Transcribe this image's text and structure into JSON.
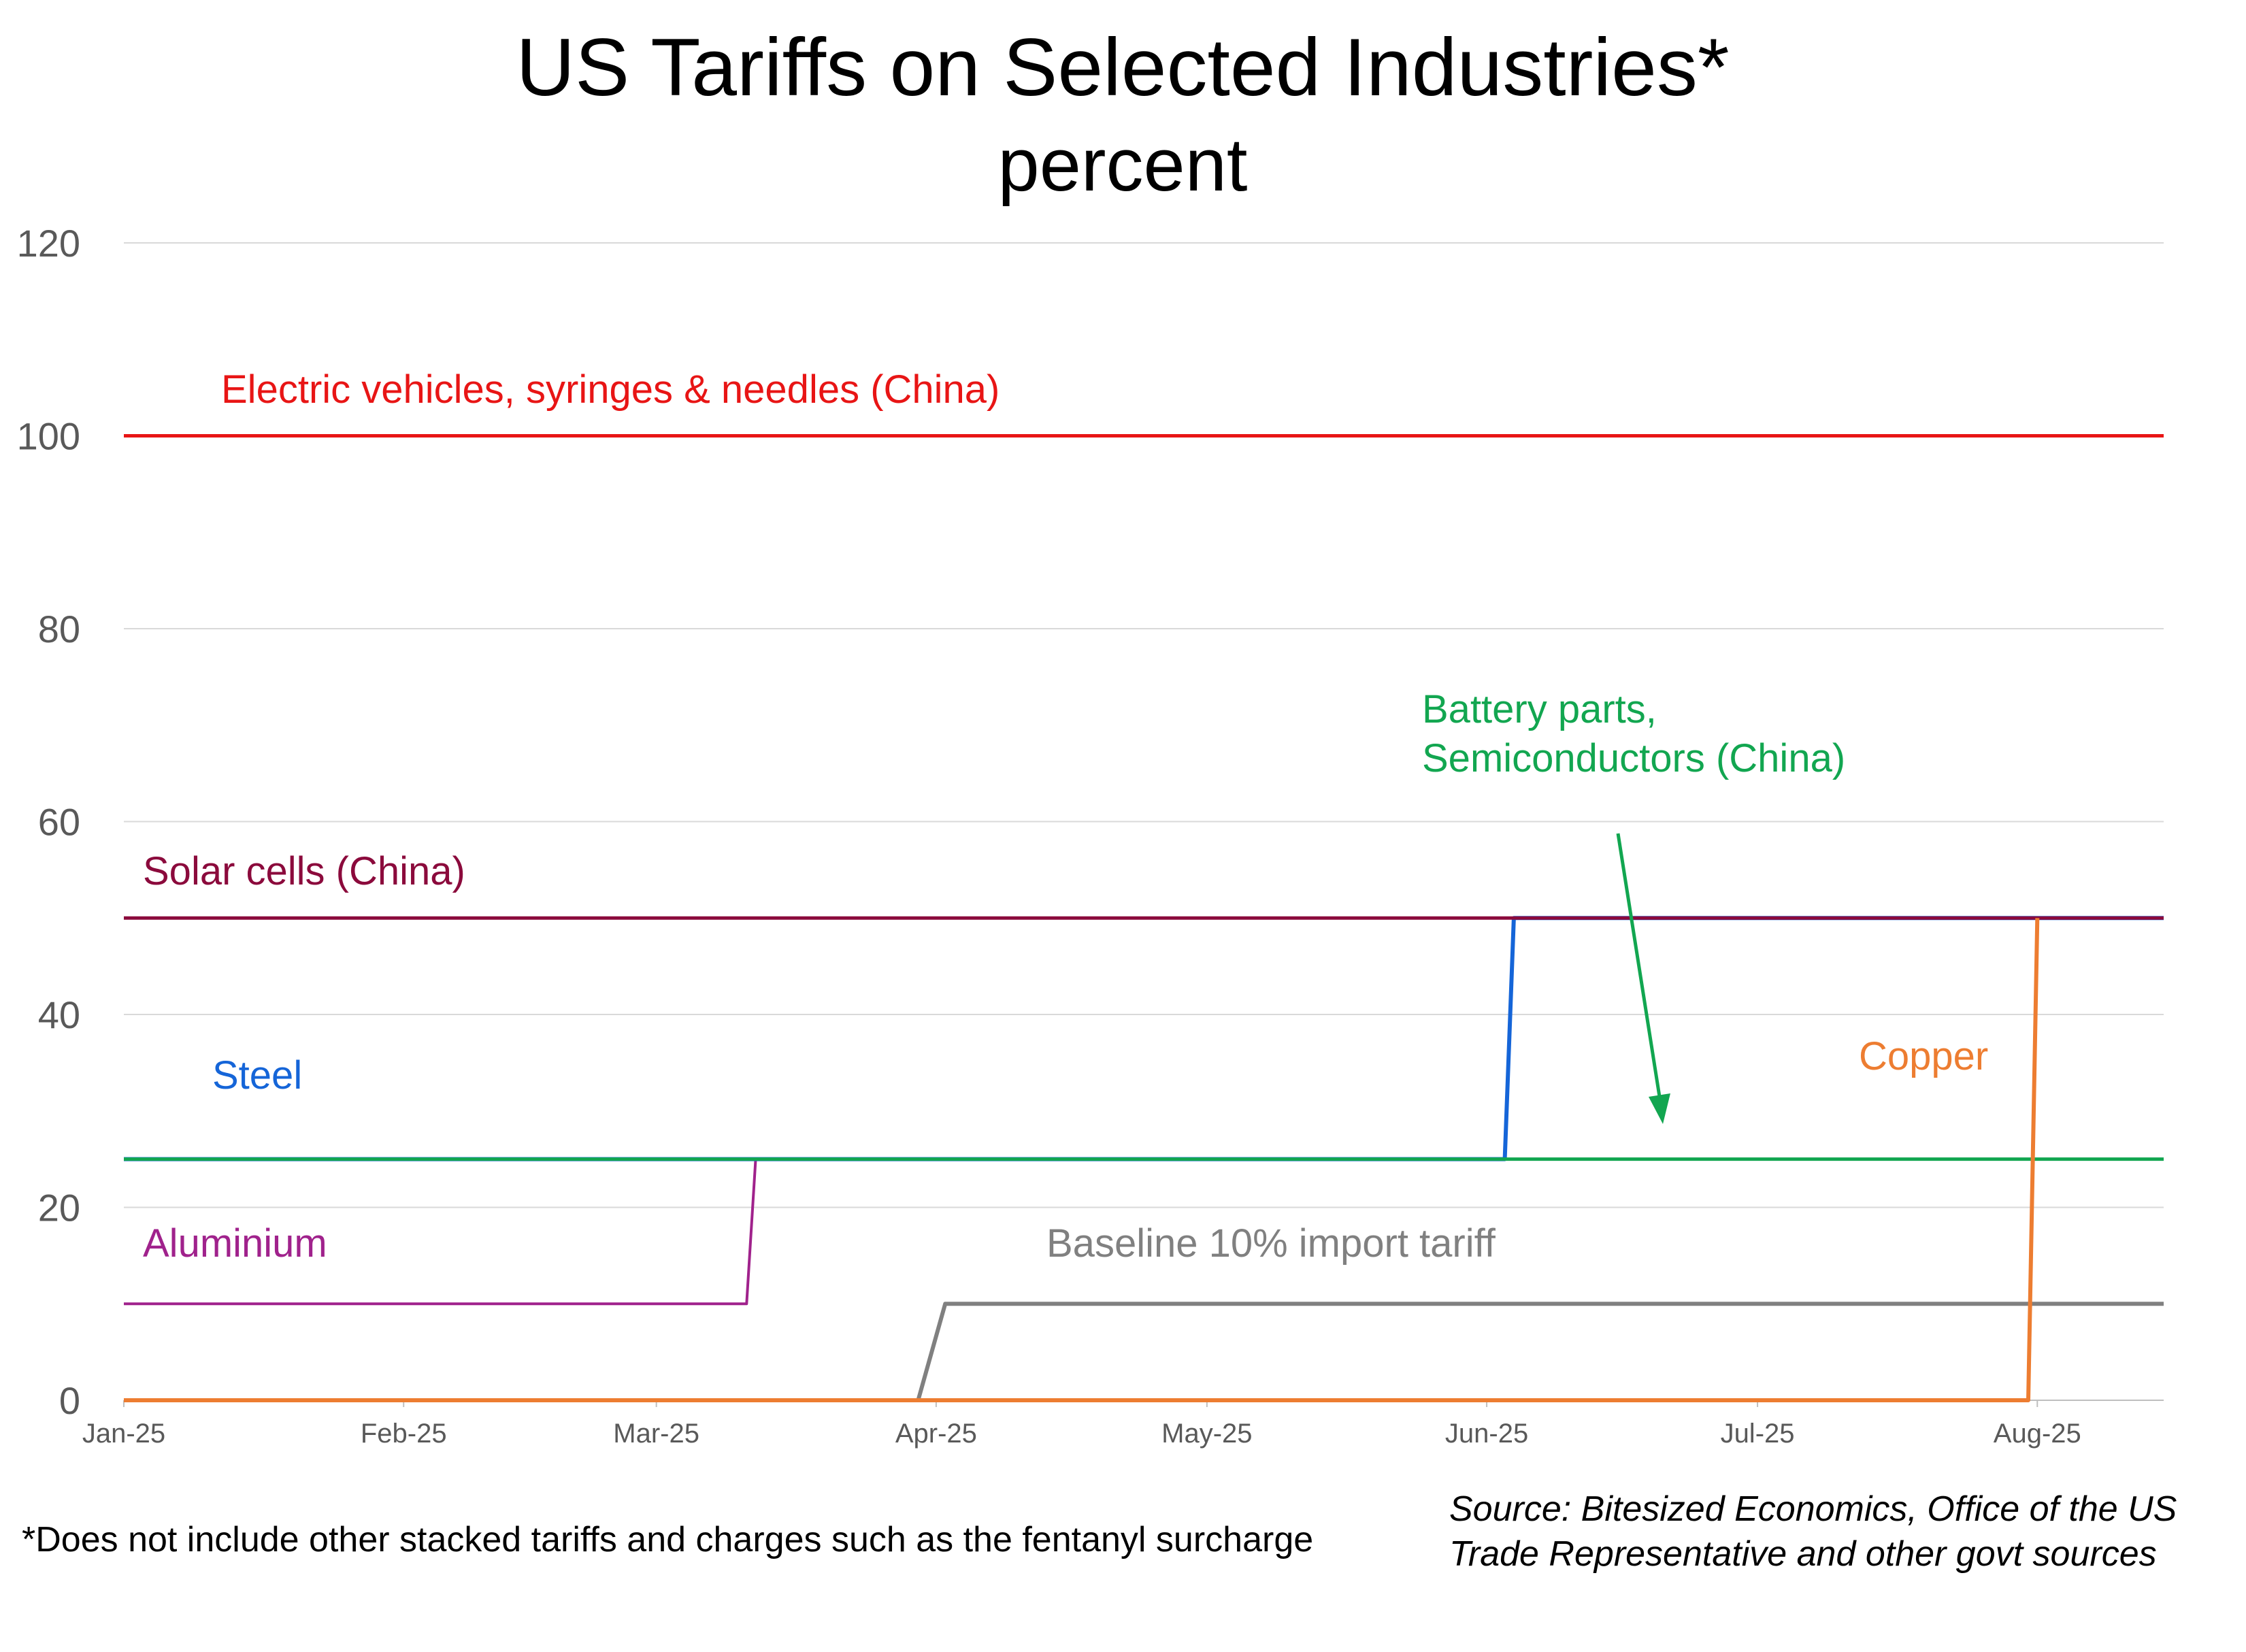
{
  "chart_data": {
    "type": "line",
    "title": "US Tariffs on Selected Industries*",
    "subtitle": "percent",
    "xlabel": "",
    "ylabel": "",
    "ylim": [
      0,
      120
    ],
    "yticks": [
      0,
      20,
      40,
      60,
      80,
      100,
      120
    ],
    "xlim": [
      "2025-01-01",
      "2025-08-15"
    ],
    "xticks": [
      {
        "date": "2025-01-01",
        "label": "Jan-25"
      },
      {
        "date": "2025-02-01",
        "label": "Feb-25"
      },
      {
        "date": "2025-03-01",
        "label": "Mar-25"
      },
      {
        "date": "2025-04-01",
        "label": "Apr-25"
      },
      {
        "date": "2025-05-01",
        "label": "May-25"
      },
      {
        "date": "2025-06-01",
        "label": "Jun-25"
      },
      {
        "date": "2025-07-01",
        "label": "Jul-25"
      },
      {
        "date": "2025-08-01",
        "label": "Aug-25"
      }
    ],
    "grid": true,
    "series": [
      {
        "name": "Electric vehicles, syringes & needles  (China)",
        "color": "#e81515",
        "width": 5,
        "points": [
          [
            "2025-01-01",
            100
          ],
          [
            "2025-08-15",
            100
          ]
        ]
      },
      {
        "name": "Aluminium",
        "color": "#a0228c",
        "width": 4,
        "points": [
          [
            "2025-01-01",
            10
          ],
          [
            "2025-03-11",
            10
          ],
          [
            "2025-03-12",
            25
          ],
          [
            "2025-08-15",
            25
          ]
        ]
      },
      {
        "name": "Steel",
        "color": "#1565d8",
        "width": 6,
        "points": [
          [
            "2025-01-01",
            25
          ],
          [
            "2025-06-03",
            25
          ],
          [
            "2025-06-04",
            50
          ],
          [
            "2025-08-15",
            50
          ]
        ]
      },
      {
        "name": "Battery parts, Semiconductors (China)",
        "color": "#12a650",
        "width": 5,
        "points": [
          [
            "2025-01-01",
            25
          ],
          [
            "2025-08-15",
            25
          ]
        ]
      },
      {
        "name": "Solar cells (China)",
        "color": "#8b0a3c",
        "width": 5,
        "points": [
          [
            "2025-01-01",
            50
          ],
          [
            "2025-08-15",
            50
          ]
        ]
      },
      {
        "name": "Baseline 10% import tariff",
        "color": "#808080",
        "width": 6,
        "points": [
          [
            "2025-01-01",
            0
          ],
          [
            "2025-03-30",
            0
          ],
          [
            "2025-04-02",
            10
          ],
          [
            "2025-08-15",
            10
          ]
        ]
      },
      {
        "name": "Copper",
        "color": "#ed7d31",
        "width": 6,
        "points": [
          [
            "2025-01-01",
            0
          ],
          [
            "2025-07-31",
            0
          ],
          [
            "2025-08-01",
            50
          ]
        ]
      }
    ],
    "annotations": [
      {
        "text": "Electric vehicles, syringes & needles  (China)",
        "color": "#e81515"
      },
      {
        "text": "Solar cells (China)",
        "color": "#8b0a3c"
      },
      {
        "text": "Steel",
        "color": "#1565d8"
      },
      {
        "text": "Aluminium",
        "color": "#a0228c"
      },
      {
        "lines": [
          "Battery parts,",
          "Semiconductors (China)"
        ],
        "color": "#12a650"
      },
      {
        "text": "Copper",
        "color": "#ed7d31"
      },
      {
        "text": "Baseline 10% import tariff",
        "color": "#808080"
      }
    ]
  },
  "footnote": "*Does not include other stacked tariffs and charges such as the fentanyl surcharge",
  "source": "Source: Bitesized Economics, Office of the US Trade Representative and other govt sources"
}
